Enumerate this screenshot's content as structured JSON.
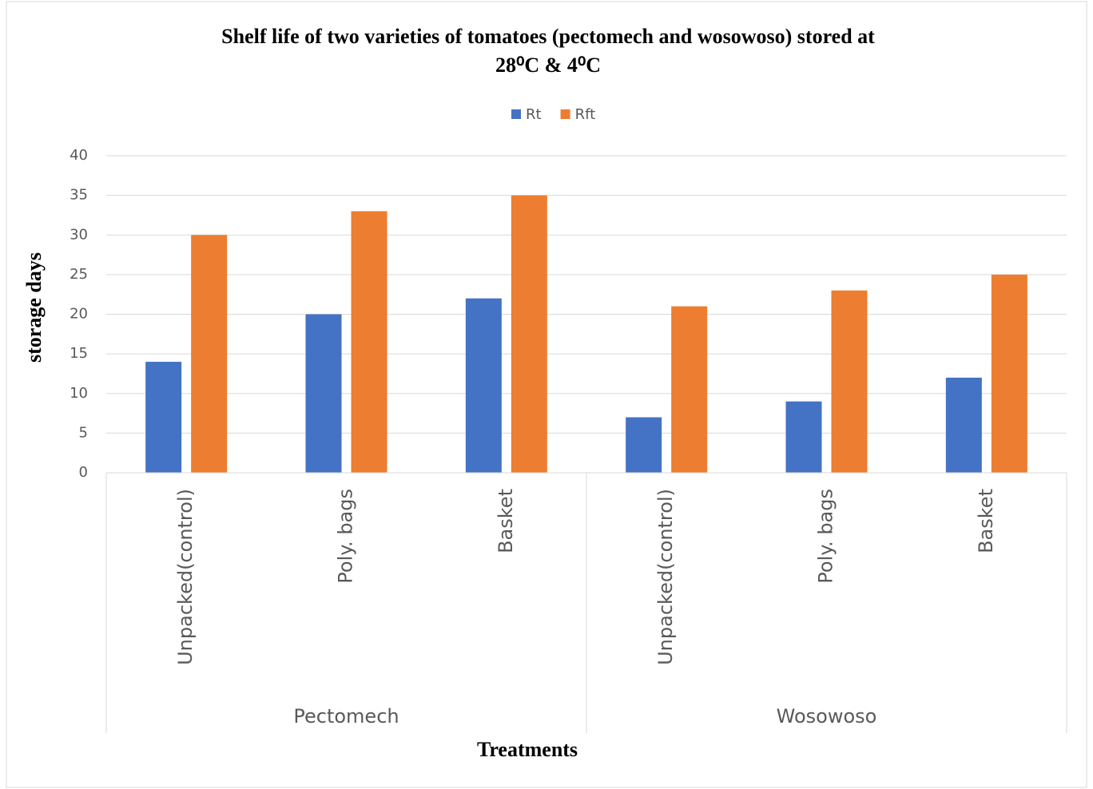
{
  "chart_data": {
    "type": "bar",
    "title": [
      "Shelf life of two varieties of tomatoes (pectomech and wosowoso) stored at",
      "28⁰C & 4⁰C"
    ],
    "xlabel": "Treatments",
    "ylabel": "storage days",
    "groups": [
      {
        "name": "Pectomech",
        "categories": [
          "Unpacked(control)",
          "Poly. bags",
          "Basket"
        ]
      },
      {
        "name": "Wosowoso",
        "categories": [
          "Unpacked(control)",
          "Poly. bags",
          "Basket"
        ]
      }
    ],
    "series": [
      {
        "name": "Rt",
        "color": "#4472c4",
        "values": [
          14,
          20,
          22,
          7,
          9,
          12
        ]
      },
      {
        "name": "Rft",
        "color": "#ed7d31",
        "values": [
          30,
          33,
          35,
          21,
          23,
          25
        ]
      }
    ],
    "ylim": [
      0,
      40
    ],
    "yticks": [
      0,
      5,
      10,
      15,
      20,
      25,
      30,
      35,
      40
    ],
    "grid": true,
    "legend": "top"
  }
}
